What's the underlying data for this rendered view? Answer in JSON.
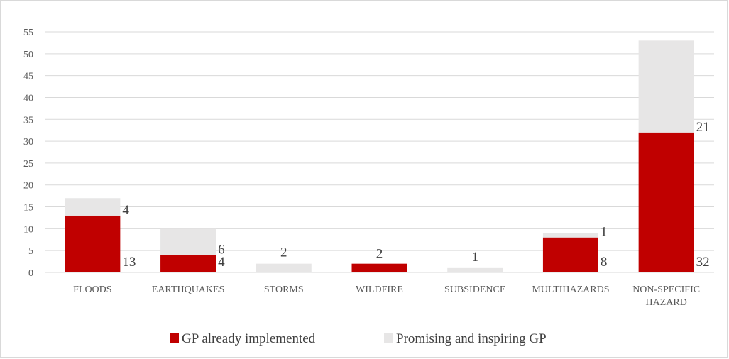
{
  "chart_data": {
    "type": "bar",
    "stacked": true,
    "title": "",
    "xlabel": "",
    "ylabel": "",
    "ylim": [
      0,
      55
    ],
    "yticks": [
      0,
      5,
      10,
      15,
      20,
      25,
      30,
      35,
      40,
      45,
      50,
      55
    ],
    "grid": true,
    "legend_position": "bottom",
    "categories": [
      [
        "FLOODS"
      ],
      [
        "EARTHQUAKES"
      ],
      [
        "STORMS"
      ],
      [
        "WILDFIRE"
      ],
      [
        "SUBSIDENCE"
      ],
      [
        "MULTIHAZARDS"
      ],
      [
        "NON-SPECIFIC",
        "HAZARD"
      ]
    ],
    "series": [
      {
        "name": "GP already implemented",
        "color": "#c00000",
        "values": [
          13,
          4,
          0,
          2,
          0,
          8,
          32
        ],
        "labels": [
          "13",
          "4",
          "",
          "2",
          "",
          "8",
          "32"
        ]
      },
      {
        "name": "Promising and inspiring GP",
        "color": "#e7e6e6",
        "values": [
          4,
          6,
          2,
          0,
          1,
          1,
          21
        ],
        "labels": [
          "4",
          "6",
          "2",
          "",
          "1",
          "1",
          "21"
        ]
      }
    ]
  }
}
